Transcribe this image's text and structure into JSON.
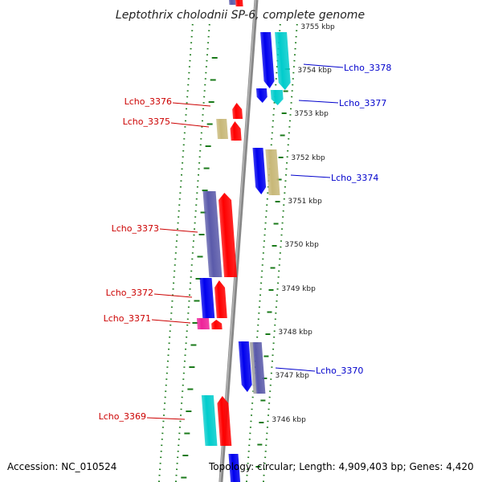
{
  "title": "Leptothrix cholodnii SP-6, complete genome",
  "footer": {
    "accession": "Accession: NC_010524",
    "summary": "Topology: circular; Length: 4,909,403 bp; Genes: 4,420"
  },
  "colors": {
    "backbone": "#888888",
    "tick": "#1a7a1a",
    "forward_label": "#cc0000",
    "reverse_label": "#0000cc",
    "red": "#ff0000",
    "blue": "#0000ee",
    "cyan": "#00cccc",
    "khaki": "#c8b878",
    "slate": "#5a5aaa",
    "magenta": "#ee2299",
    "gray": "#aaaaaa"
  },
  "kbp_marks": [
    "3755 kbp",
    "3754 kbp",
    "3753 kbp",
    "3752 kbp",
    "3751 kbp",
    "3750 kbp",
    "3749 kbp",
    "3748 kbp",
    "3747 kbp",
    "3746 kbp"
  ],
  "gene_labels": [
    {
      "name": "Lcho_3378",
      "strand": "reverse"
    },
    {
      "name": "Lcho_3377",
      "strand": "reverse"
    },
    {
      "name": "Lcho_3376",
      "strand": "forward"
    },
    {
      "name": "Lcho_3375",
      "strand": "forward"
    },
    {
      "name": "Lcho_3374",
      "strand": "reverse"
    },
    {
      "name": "Lcho_3373",
      "strand": "forward"
    },
    {
      "name": "Lcho_3372",
      "strand": "forward"
    },
    {
      "name": "Lcho_3371",
      "strand": "forward"
    },
    {
      "name": "Lcho_3370",
      "strand": "reverse"
    },
    {
      "name": "Lcho_3369",
      "strand": "forward"
    }
  ]
}
